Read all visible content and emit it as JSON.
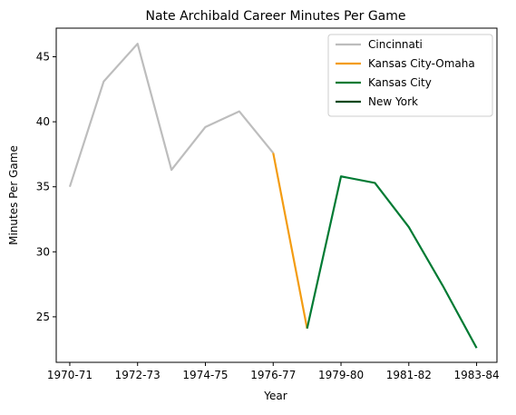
{
  "chart_data": {
    "type": "line",
    "title": "Nate Archibald Career Minutes Per Game",
    "xlabel": "Year",
    "ylabel": "Minutes Per Game",
    "x_tick_labels": [
      "1970-71",
      "1972-73",
      "1974-75",
      "1976-77",
      "1979-80",
      "1981-82",
      "1983-84"
    ],
    "y_ticks": [
      25,
      30,
      35,
      40,
      45
    ],
    "ylim": [
      21.5,
      47.2
    ],
    "grid": false,
    "legend_position": "top-right",
    "series": [
      {
        "name": "Cincinnati",
        "color": "#bdbdbd",
        "points": [
          {
            "x": 0,
            "y": 35.0
          },
          {
            "x": 1,
            "y": 43.1
          },
          {
            "x": 2,
            "y": 46.0
          },
          {
            "x": 3,
            "y": 36.3
          },
          {
            "x": 4,
            "y": 39.6
          },
          {
            "x": 5,
            "y": 40.8
          },
          {
            "x": 6,
            "y": 37.6
          }
        ]
      },
      {
        "name": "Kansas City-Omaha",
        "color": "#f39c12",
        "points": [
          {
            "x": 6,
            "y": 37.6
          },
          {
            "x": 7,
            "y": 24.1
          }
        ]
      },
      {
        "name": "Kansas City",
        "color": "#007a33",
        "points": [
          {
            "x": 7,
            "y": 24.1
          },
          {
            "x": 8,
            "y": 35.8
          },
          {
            "x": 9,
            "y": 35.3
          },
          {
            "x": 10,
            "y": 31.9
          },
          {
            "x": 11,
            "y": 27.4
          },
          {
            "x": 12,
            "y": 22.6
          }
        ]
      },
      {
        "name": "New York",
        "color": "#00471b",
        "points": []
      }
    ]
  }
}
